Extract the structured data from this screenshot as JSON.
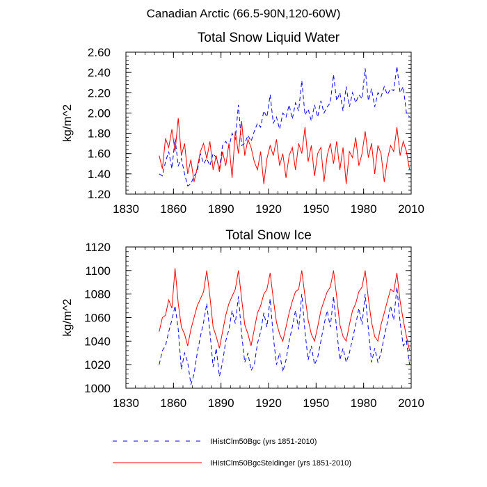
{
  "page_title": "Canadian Arctic (66.5-90N,120-60W)",
  "legend": [
    {
      "label": "IHistClm50Bgc (yrs 1851-2010)",
      "color": "#0000ff",
      "dash": "dashed"
    },
    {
      "label": "IHistClm50BgcSteidinger (yrs 1851-2010)",
      "color": "#ff0000",
      "dash": "solid"
    }
  ],
  "chart_data": [
    {
      "type": "line",
      "title": "Total Snow Liquid Water",
      "xlabel": "",
      "ylabel": "kg/m^2",
      "xlim": [
        1830,
        2010
      ],
      "ylim": [
        1.2,
        2.6
      ],
      "xticks": [
        1830,
        1860,
        1890,
        1920,
        1950,
        1980,
        2010
      ],
      "yticks": [
        1.2,
        1.4,
        1.6,
        1.8,
        2.0,
        2.2,
        2.4,
        2.6
      ],
      "xtick_labels": [
        "1830",
        "1860",
        "1890",
        "1920",
        "1950",
        "1980",
        "2010"
      ],
      "ytick_labels": [
        "1.20",
        "1.40",
        "1.60",
        "1.80",
        "2.00",
        "2.20",
        "2.40",
        "2.60"
      ],
      "x": [
        1851,
        1853,
        1855,
        1857,
        1859,
        1861,
        1863,
        1865,
        1867,
        1869,
        1871,
        1873,
        1875,
        1877,
        1879,
        1881,
        1883,
        1885,
        1887,
        1889,
        1891,
        1893,
        1895,
        1897,
        1899,
        1901,
        1903,
        1905,
        1907,
        1909,
        1911,
        1913,
        1915,
        1917,
        1919,
        1921,
        1923,
        1925,
        1927,
        1929,
        1931,
        1933,
        1935,
        1937,
        1939,
        1941,
        1943,
        1945,
        1947,
        1949,
        1951,
        1953,
        1955,
        1957,
        1959,
        1961,
        1963,
        1965,
        1967,
        1969,
        1971,
        1973,
        1975,
        1977,
        1979,
        1981,
        1983,
        1985,
        1987,
        1989,
        1991,
        1993,
        1995,
        1997,
        1999,
        2001,
        2003,
        2005,
        2007,
        2009
      ],
      "series": [
        {
          "name": "IHistClm50Bgc (yrs 1851-2010)",
          "color": "#0000ff",
          "dash": "dashed",
          "values": [
            1.4,
            1.38,
            1.52,
            1.62,
            1.45,
            1.75,
            1.48,
            1.55,
            1.4,
            1.28,
            1.3,
            1.38,
            1.42,
            1.6,
            1.5,
            1.55,
            1.48,
            1.6,
            1.56,
            1.45,
            1.68,
            1.72,
            1.66,
            1.8,
            1.74,
            2.08,
            1.68,
            1.7,
            1.78,
            1.72,
            1.82,
            1.9,
            1.86,
            2.02,
            1.96,
            2.18,
            1.9,
            1.96,
            1.84,
            2.0,
            1.96,
            2.08,
            1.94,
            2.1,
            2.02,
            2.32,
            1.98,
            2.04,
            1.92,
            2.08,
            1.96,
            2.12,
            2.0,
            2.06,
            2.1,
            2.38,
            2.12,
            2.2,
            2.02,
            2.26,
            2.06,
            2.2,
            2.1,
            2.18,
            2.14,
            2.44,
            2.12,
            2.24,
            2.06,
            2.2,
            2.16,
            2.26,
            2.18,
            2.24,
            2.22,
            2.46,
            2.2,
            2.26,
            2.0,
            1.96
          ]
        },
        {
          "name": "IHistClm50BgcSteidinger (yrs 1851-2010)",
          "color": "#ff0000",
          "dash": "solid",
          "values": [
            1.58,
            1.45,
            1.75,
            1.66,
            1.84,
            1.62,
            1.95,
            1.58,
            1.7,
            1.4,
            1.54,
            1.32,
            1.46,
            1.62,
            1.7,
            1.55,
            1.72,
            1.44,
            1.58,
            1.42,
            1.62,
            1.48,
            1.7,
            1.36,
            1.82,
            1.6,
            1.92,
            1.58,
            1.74,
            1.66,
            1.52,
            1.44,
            1.62,
            1.3,
            1.55,
            1.68,
            1.58,
            1.74,
            1.48,
            1.6,
            1.36,
            1.58,
            1.66,
            1.44,
            1.7,
            1.6,
            1.86,
            1.52,
            1.68,
            1.38,
            1.6,
            1.66,
            1.32,
            1.58,
            1.7,
            1.5,
            1.72,
            1.44,
            1.66,
            1.3,
            1.62,
            1.56,
            1.76,
            1.48,
            1.6,
            1.82,
            1.56,
            1.7,
            1.4,
            1.68,
            1.6,
            1.32,
            1.54,
            1.68,
            1.62,
            1.86,
            1.58,
            1.72,
            1.62,
            1.44
          ]
        }
      ]
    },
    {
      "type": "line",
      "title": "Total Snow Ice",
      "xlabel": "",
      "ylabel": "kg/m^2",
      "xlim": [
        1830,
        2010
      ],
      "ylim": [
        1000,
        1120
      ],
      "xticks": [
        1830,
        1860,
        1890,
        1920,
        1950,
        1980,
        2010
      ],
      "yticks": [
        1000,
        1020,
        1040,
        1060,
        1080,
        1100,
        1120
      ],
      "xtick_labels": [
        "1830",
        "1860",
        "1890",
        "1920",
        "1950",
        "1980",
        "2010"
      ],
      "ytick_labels": [
        "1000",
        "1020",
        "1040",
        "1060",
        "1080",
        "1100",
        "1120"
      ],
      "x": [
        1851,
        1853,
        1855,
        1857,
        1859,
        1861,
        1863,
        1865,
        1867,
        1869,
        1871,
        1873,
        1875,
        1877,
        1879,
        1881,
        1883,
        1885,
        1887,
        1889,
        1891,
        1893,
        1895,
        1897,
        1899,
        1901,
        1903,
        1905,
        1907,
        1909,
        1911,
        1913,
        1915,
        1917,
        1919,
        1921,
        1923,
        1925,
        1927,
        1929,
        1931,
        1933,
        1935,
        1937,
        1939,
        1941,
        1943,
        1945,
        1947,
        1949,
        1951,
        1953,
        1955,
        1957,
        1959,
        1961,
        1963,
        1965,
        1967,
        1969,
        1971,
        1973,
        1975,
        1977,
        1979,
        1981,
        1983,
        1985,
        1987,
        1989,
        1991,
        1993,
        1995,
        1997,
        1999,
        2001,
        2003,
        2005,
        2007,
        2009
      ],
      "series": [
        {
          "name": "IHistClm50Bgc (yrs 1851-2010)",
          "color": "#0000ff",
          "dash": "dashed",
          "values": [
            1020,
            1032,
            1036,
            1048,
            1058,
            1070,
            1050,
            1016,
            1030,
            1022,
            1003,
            1012,
            1030,
            1044,
            1056,
            1072,
            1048,
            1018,
            1034,
            1010,
            1022,
            1040,
            1050,
            1066,
            1055,
            1078,
            1046,
            1022,
            1030,
            1015,
            1020,
            1038,
            1048,
            1064,
            1052,
            1076,
            1044,
            1020,
            1030,
            1014,
            1024,
            1040,
            1052,
            1066,
            1050,
            1080,
            1048,
            1024,
            1036,
            1020,
            1026,
            1040,
            1054,
            1066,
            1052,
            1078,
            1050,
            1024,
            1034,
            1022,
            1030,
            1042,
            1054,
            1068,
            1054,
            1080,
            1050,
            1022,
            1034,
            1022,
            1030,
            1044,
            1056,
            1070,
            1058,
            1086,
            1056,
            1036,
            1040,
            1020
          ]
        },
        {
          "name": "IHistClm50BgcSteidinger (yrs 1851-2010)",
          "color": "#ff0000",
          "dash": "solid",
          "values": [
            1048,
            1060,
            1062,
            1075,
            1068,
            1102,
            1072,
            1052,
            1046,
            1036,
            1050,
            1060,
            1070,
            1076,
            1082,
            1100,
            1078,
            1052,
            1044,
            1034,
            1048,
            1062,
            1072,
            1078,
            1084,
            1100,
            1076,
            1054,
            1046,
            1036,
            1050,
            1064,
            1070,
            1080,
            1084,
            1098,
            1076,
            1056,
            1046,
            1040,
            1052,
            1064,
            1074,
            1082,
            1084,
            1100,
            1078,
            1058,
            1046,
            1040,
            1052,
            1066,
            1074,
            1082,
            1086,
            1100,
            1078,
            1054,
            1044,
            1040,
            1054,
            1066,
            1072,
            1082,
            1086,
            1100,
            1076,
            1056,
            1044,
            1040,
            1054,
            1064,
            1074,
            1084,
            1082,
            1098,
            1074,
            1058,
            1044,
            1032
          ]
        }
      ]
    }
  ]
}
